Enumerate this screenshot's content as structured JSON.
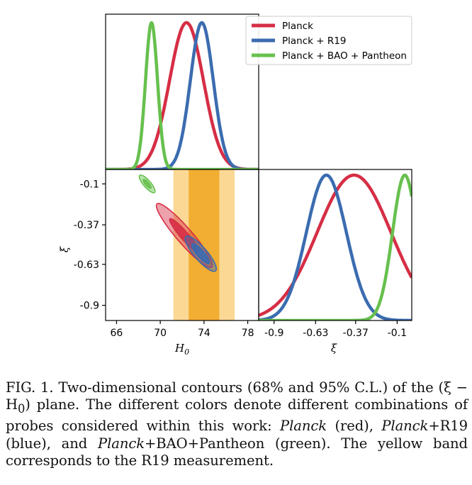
{
  "colors": {
    "planck": "#d62e45",
    "planck_r19": "#3b6cb0",
    "planck_bao_pantheon": "#67c04e",
    "r19_inner": "#f2ae32",
    "r19_outer": "#fbd894"
  },
  "chart_data": [
    {
      "panel": "H0-marginal",
      "type": "line",
      "legend": {
        "placement": "top-right",
        "entries": [
          "Planck",
          "Planck + R19",
          "Planck + BAO + Pantheon"
        ]
      },
      "xlim": [
        65,
        79
      ],
      "series": [
        {
          "name": "Planck",
          "peak_x": 72.4,
          "sigma": 1.55
        },
        {
          "name": "Planck + R19",
          "peak_x": 73.8,
          "sigma": 1.05
        },
        {
          "name": "Planck + BAO + Pantheon",
          "peak_x": 69.2,
          "sigma": 0.55
        }
      ]
    },
    {
      "panel": "H0-xi-contours",
      "type": "scatter",
      "xlabel": "H0",
      "ylabel": "ξ",
      "xlim": [
        65,
        79
      ],
      "ylim": [
        -1.0,
        -0.005
      ],
      "xticks": [
        "66",
        "70",
        "74",
        "78"
      ],
      "yticks": [
        "-0.1",
        "-0.37",
        "-0.63",
        "-0.9"
      ],
      "r19_band": {
        "mean": 74.0,
        "sigma": 1.4
      },
      "contours": [
        {
          "name": "Planck",
          "center": [
            72.2,
            -0.44
          ],
          "direction": [
            3.0,
            -0.25
          ]
        },
        {
          "name": "Planck + R19",
          "center": [
            73.7,
            -0.56
          ],
          "direction": [
            3.0,
            -0.25
          ]
        },
        {
          "name": "Planck + BAO + Pantheon",
          "center": [
            68.8,
            -0.1
          ],
          "direction": [
            3.0,
            -0.25
          ]
        }
      ]
    },
    {
      "panel": "xi-marginal",
      "type": "line",
      "xlabel": "ξ",
      "xlim": [
        -1.0,
        -0.005
      ],
      "xticks": [
        "-0.9",
        "-0.63",
        "-0.37",
        "-0.1"
      ],
      "series": [
        {
          "name": "Planck",
          "peak_x": -0.38,
          "sigma": 0.24
        },
        {
          "name": "Planck + R19",
          "peak_x": -0.56,
          "sigma": 0.13
        },
        {
          "name": "Planck + BAO + Pantheon",
          "peak_x": -0.05,
          "sigma": 0.08
        }
      ]
    }
  ],
  "caption": {
    "label": "FIG. 1.",
    "text1": " Two-dimensional contours (68% and 95% C.L.) of the (ξ − H",
    "sub": "0",
    "text2": ") plane. The different colors denote different combinations of probes considered within this work: ",
    "planck": "Planck",
    "text3": " (red), ",
    "planck2": "Planck",
    "text4": "+R19 (blue), and ",
    "planck3": "Planck",
    "text5": "+BAO+Pantheon (green). The yellow band corresponds to the R19 measurement."
  }
}
